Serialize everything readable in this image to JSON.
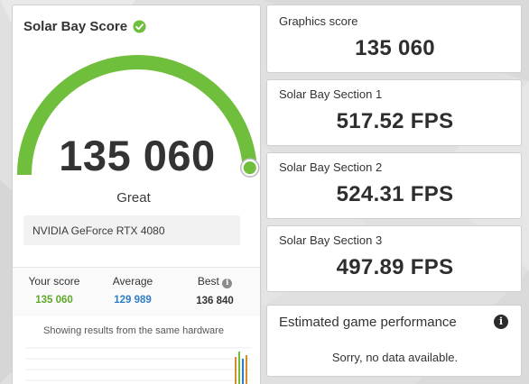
{
  "colors": {
    "accent_green": "#6fbf3c",
    "score_green": "#5ea82a",
    "average_blue": "#2f7ec9"
  },
  "score_panel": {
    "title": "Solar Bay Score",
    "title_icon": "check-circle-icon",
    "score": "135 060",
    "gauge_fraction": 0.98,
    "rating": "Great",
    "hardware": "NVIDIA GeForce RTX 4080",
    "stats": {
      "your_score_label": "Your score",
      "your_score_value": "135 060",
      "average_label": "Average",
      "average_value": "129 989",
      "best_label": "Best",
      "best_value": "136 840",
      "best_icon": "info-icon"
    },
    "same_hardware_note": "Showing results from the same hardware"
  },
  "cards": {
    "graphics": {
      "label": "Graphics score",
      "value": "135 060"
    },
    "section1": {
      "label": "Solar Bay Section 1",
      "value": "517.52 FPS"
    },
    "section2": {
      "label": "Solar Bay Section 2",
      "value": "524.31 FPS"
    },
    "section3": {
      "label": "Solar Bay Section 3",
      "value": "497.89 FPS"
    },
    "estimated": {
      "title": "Estimated game performance",
      "icon": "info-icon",
      "message": "Sorry, no data available."
    }
  }
}
